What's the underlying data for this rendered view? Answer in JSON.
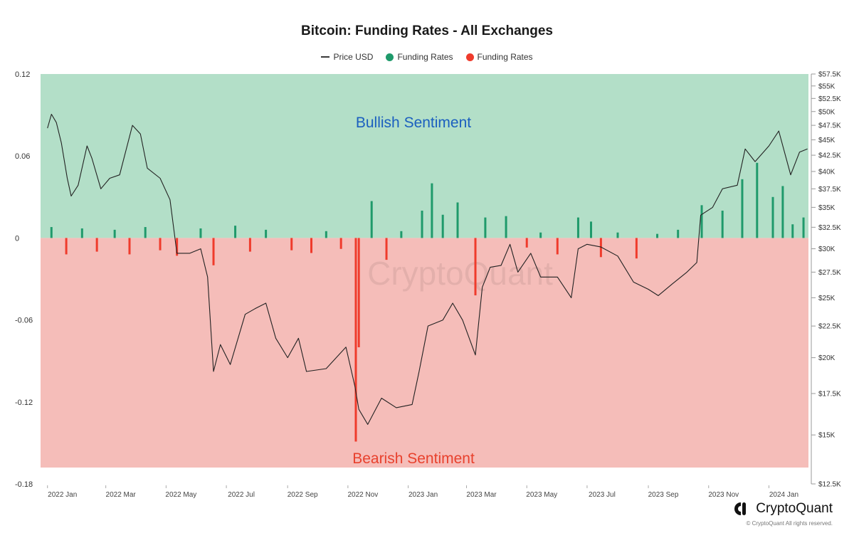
{
  "chart_data": {
    "type": "bar",
    "title": "Bitcoin: Funding Rates - All Exchanges",
    "legend": [
      {
        "label": "Price USD",
        "kind": "line",
        "color": "#3a3a3a"
      },
      {
        "label": "Funding Rates",
        "kind": "dot",
        "color": "#1f9a6b"
      },
      {
        "label": "Funding Rates",
        "kind": "dot",
        "color": "#ef3b2c"
      }
    ],
    "zones": {
      "bullish_label": "Bullish Sentiment",
      "bearish_label": "Bearish Sentiment",
      "bullish_fill": "#b3dfc8",
      "bearish_fill": "#f5bdb9",
      "bullish_text_color": "#1b5fbf",
      "bearish_text_color": "#e8412d"
    },
    "watermark": "CryptoQuant",
    "x_ticks": [
      "2022 Jan",
      "2022 Mar",
      "2022 May",
      "2022 Jul",
      "2022 Sep",
      "2022 Nov",
      "2023 Jan",
      "2023 Mar",
      "2023 May",
      "2023 Jul",
      "2023 Sep",
      "2023 Nov",
      "2024 Jan"
    ],
    "x_range": [
      "2021-12-25",
      "2024-02-10"
    ],
    "y_left": {
      "ticks": [
        "0.12",
        "0.06",
        "0",
        "-0.06",
        "-0.12",
        "-0.18"
      ],
      "range": [
        -0.18,
        0.12
      ]
    },
    "y_right": {
      "ticks": [
        "$57.5K",
        "$55K",
        "$52.5K",
        "$50K",
        "$47.5K",
        "$45K",
        "$42.5K",
        "$40K",
        "$37.5K",
        "$35K",
        "$32.5K",
        "$30K",
        "$27.5K",
        "$25K",
        "$22.5K",
        "$20K",
        "$17.5K",
        "$15K",
        "$12.5K"
      ],
      "range": [
        12500,
        57500
      ],
      "scale": "log"
    },
    "price_usd": {
      "name": "Price USD",
      "points": [
        [
          "2022-01-01",
          47000
        ],
        [
          "2022-01-05",
          49500
        ],
        [
          "2022-01-10",
          48000
        ],
        [
          "2022-01-15",
          44500
        ],
        [
          "2022-01-21",
          39000
        ],
        [
          "2022-01-25",
          36500
        ],
        [
          "2022-02-01",
          38000
        ],
        [
          "2022-02-10",
          44000
        ],
        [
          "2022-02-15",
          42000
        ],
        [
          "2022-02-24",
          37500
        ],
        [
          "2022-03-05",
          39000
        ],
        [
          "2022-03-15",
          39500
        ],
        [
          "2022-03-28",
          47500
        ],
        [
          "2022-04-05",
          46000
        ],
        [
          "2022-04-12",
          40500
        ],
        [
          "2022-04-25",
          39000
        ],
        [
          "2022-05-05",
          36000
        ],
        [
          "2022-05-12",
          29500
        ],
        [
          "2022-05-25",
          29500
        ],
        [
          "2022-06-05",
          30000
        ],
        [
          "2022-06-12",
          27000
        ],
        [
          "2022-06-18",
          19000
        ],
        [
          "2022-06-25",
          21000
        ],
        [
          "2022-07-05",
          19500
        ],
        [
          "2022-07-20",
          23500
        ],
        [
          "2022-07-30",
          24000
        ],
        [
          "2022-08-10",
          24500
        ],
        [
          "2022-08-20",
          21500
        ],
        [
          "2022-09-01",
          20000
        ],
        [
          "2022-09-12",
          21500
        ],
        [
          "2022-09-20",
          19000
        ],
        [
          "2022-10-10",
          19200
        ],
        [
          "2022-10-30",
          20800
        ],
        [
          "2022-11-08",
          18000
        ],
        [
          "2022-11-12",
          16500
        ],
        [
          "2022-11-21",
          15600
        ],
        [
          "2022-12-05",
          17200
        ],
        [
          "2022-12-20",
          16600
        ],
        [
          "2023-01-05",
          16800
        ],
        [
          "2023-01-12",
          19000
        ],
        [
          "2023-01-21",
          22500
        ],
        [
          "2023-02-05",
          23000
        ],
        [
          "2023-02-15",
          24500
        ],
        [
          "2023-02-25",
          23000
        ],
        [
          "2023-03-10",
          20200
        ],
        [
          "2023-03-17",
          26000
        ],
        [
          "2023-03-25",
          28000
        ],
        [
          "2023-04-05",
          28200
        ],
        [
          "2023-04-14",
          30500
        ],
        [
          "2023-04-22",
          27500
        ],
        [
          "2023-05-05",
          29500
        ],
        [
          "2023-05-15",
          27000
        ],
        [
          "2023-06-01",
          27000
        ],
        [
          "2023-06-15",
          25000
        ],
        [
          "2023-06-22",
          30000
        ],
        [
          "2023-07-01",
          30500
        ],
        [
          "2023-07-15",
          30200
        ],
        [
          "2023-08-01",
          29200
        ],
        [
          "2023-08-17",
          26500
        ],
        [
          "2023-09-01",
          25800
        ],
        [
          "2023-09-11",
          25200
        ],
        [
          "2023-09-25",
          26300
        ],
        [
          "2023-10-10",
          27500
        ],
        [
          "2023-10-20",
          28500
        ],
        [
          "2023-10-24",
          34000
        ],
        [
          "2023-11-05",
          35000
        ],
        [
          "2023-11-15",
          37500
        ],
        [
          "2023-11-30",
          38000
        ],
        [
          "2023-12-08",
          43500
        ],
        [
          "2023-12-18",
          41500
        ],
        [
          "2024-01-01",
          44000
        ],
        [
          "2024-01-11",
          46500
        ],
        [
          "2024-01-23",
          39500
        ],
        [
          "2024-02-01",
          43000
        ],
        [
          "2024-02-09",
          43500
        ]
      ]
    },
    "funding_rates": {
      "name": "Funding Rates",
      "points": [
        [
          "2022-01-05",
          0.008
        ],
        [
          "2022-01-20",
          -0.012
        ],
        [
          "2022-02-05",
          0.007
        ],
        [
          "2022-02-20",
          -0.01
        ],
        [
          "2022-03-10",
          0.006
        ],
        [
          "2022-03-25",
          -0.012
        ],
        [
          "2022-04-10",
          0.008
        ],
        [
          "2022-04-25",
          -0.009
        ],
        [
          "2022-05-12",
          -0.013
        ],
        [
          "2022-06-05",
          0.007
        ],
        [
          "2022-06-18",
          -0.02
        ],
        [
          "2022-07-10",
          0.009
        ],
        [
          "2022-07-25",
          -0.01
        ],
        [
          "2022-08-10",
          0.006
        ],
        [
          "2022-09-05",
          -0.009
        ],
        [
          "2022-09-25",
          -0.011
        ],
        [
          "2022-10-10",
          0.005
        ],
        [
          "2022-10-25",
          -0.008
        ],
        [
          "2022-11-09",
          -0.149
        ],
        [
          "2022-11-12",
          -0.08
        ],
        [
          "2022-11-25",
          0.027
        ],
        [
          "2022-12-10",
          -0.016
        ],
        [
          "2022-12-25",
          0.005
        ],
        [
          "2023-01-15",
          0.02
        ],
        [
          "2023-01-25",
          0.04
        ],
        [
          "2023-02-05",
          0.017
        ],
        [
          "2023-02-20",
          0.026
        ],
        [
          "2023-03-10",
          -0.042
        ],
        [
          "2023-03-20",
          0.015
        ],
        [
          "2023-04-10",
          0.016
        ],
        [
          "2023-05-01",
          -0.007
        ],
        [
          "2023-05-15",
          0.004
        ],
        [
          "2023-06-01",
          -0.012
        ],
        [
          "2023-06-22",
          0.015
        ],
        [
          "2023-07-05",
          0.012
        ],
        [
          "2023-07-15",
          -0.014
        ],
        [
          "2023-08-01",
          0.004
        ],
        [
          "2023-08-20",
          -0.015
        ],
        [
          "2023-09-10",
          0.003
        ],
        [
          "2023-10-01",
          0.006
        ],
        [
          "2023-10-25",
          0.024
        ],
        [
          "2023-11-15",
          0.02
        ],
        [
          "2023-12-05",
          0.043
        ],
        [
          "2023-12-20",
          0.055
        ],
        [
          "2024-01-05",
          0.03
        ],
        [
          "2024-01-15",
          0.038
        ],
        [
          "2024-01-25",
          0.01
        ],
        [
          "2024-02-05",
          0.015
        ]
      ]
    }
  },
  "branding": {
    "name": "CryptoQuant",
    "copyright": "© CryptoQuant All rights reserved."
  }
}
